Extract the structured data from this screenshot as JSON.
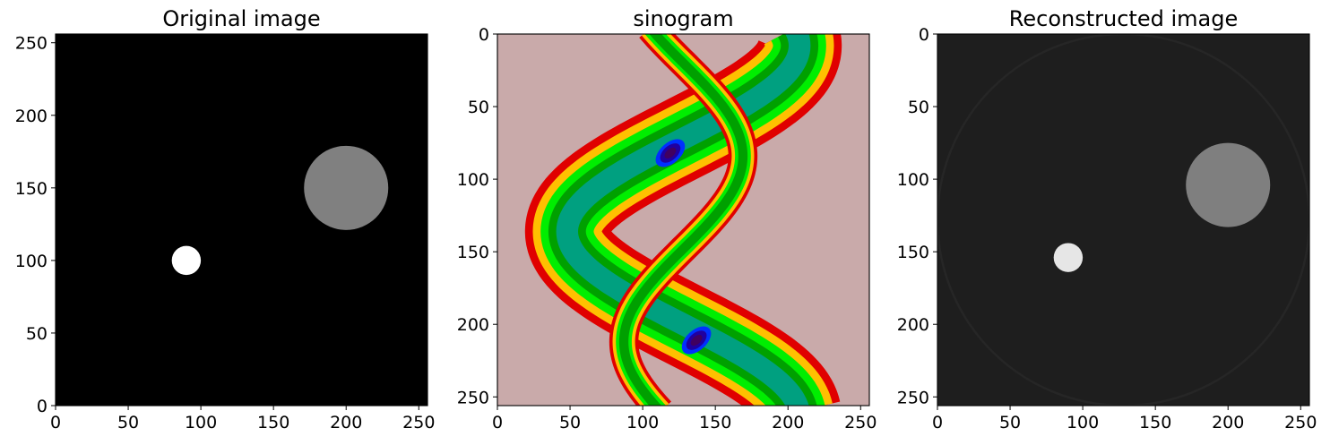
{
  "chart_data": [
    {
      "type": "image",
      "title": "Original image",
      "colormap": "gray",
      "xlim": [
        0,
        256
      ],
      "ylim": [
        0,
        256
      ],
      "y_axis": "origin-bottom",
      "xticks": [
        0,
        50,
        100,
        150,
        200,
        250
      ],
      "yticks": [
        0,
        50,
        100,
        150,
        200,
        250
      ],
      "background_value": 0.0,
      "objects": [
        {
          "shape": "disk",
          "cx": 200,
          "cy": 150,
          "r": 29,
          "value": 0.5,
          "color": "#808080"
        },
        {
          "shape": "disk",
          "cx": 90,
          "cy": 100,
          "r": 10,
          "value": 1.0,
          "color": "#ffffff"
        }
      ]
    },
    {
      "type": "image",
      "title": "sinogram",
      "colormap": "nipy_spectral",
      "xlim": [
        0,
        256
      ],
      "ylim": [
        256,
        0
      ],
      "y_axis": "origin-top",
      "xticks": [
        0,
        50,
        100,
        150,
        200,
        250
      ],
      "yticks": [
        0,
        50,
        100,
        150,
        200,
        250
      ],
      "background_color": "#c9aaaa",
      "traces": [
        {
          "label": "large disk trace",
          "center": 128,
          "amplitude": 80,
          "row_period": 256,
          "phase_row": 8,
          "half_width": 29,
          "colors": [
            "#e00000",
            "#ffc000",
            "#00ee00",
            "#00a000",
            "#00a080"
          ]
        },
        {
          "label": "small disk trace",
          "center": 128,
          "amplitude": 41,
          "row_period": 256,
          "phase_row": 84,
          "half_width": 10,
          "colors": [
            "#e00000",
            "#ffc000",
            "#00ee00",
            "#00a000"
          ]
        }
      ],
      "crossings": [
        {
          "x": 119,
          "y": 82,
          "colors": [
            "#0030ff",
            "#2000a0",
            "#400060"
          ]
        },
        {
          "x": 137,
          "y": 211,
          "colors": [
            "#0030ff",
            "#2000a0",
            "#400060"
          ]
        }
      ]
    },
    {
      "type": "image",
      "title": "Reconstructed image",
      "colormap": "gray",
      "xlim": [
        0,
        256
      ],
      "ylim": [
        256,
        0
      ],
      "y_axis": "origin-top",
      "xticks": [
        0,
        50,
        100,
        150,
        200,
        250
      ],
      "yticks": [
        0,
        50,
        100,
        150,
        200,
        250
      ],
      "background_color": "#1e1e1e",
      "objects": [
        {
          "shape": "disk",
          "cx": 200,
          "cy": 104,
          "r": 29,
          "color": "#7f7f7f"
        },
        {
          "shape": "disk",
          "cx": 90,
          "cy": 154,
          "r": 10,
          "color": "#e6e6e6"
        },
        {
          "shape": "ring",
          "cx": 128,
          "cy": 128,
          "r": 128,
          "color": "#262626"
        }
      ]
    }
  ]
}
